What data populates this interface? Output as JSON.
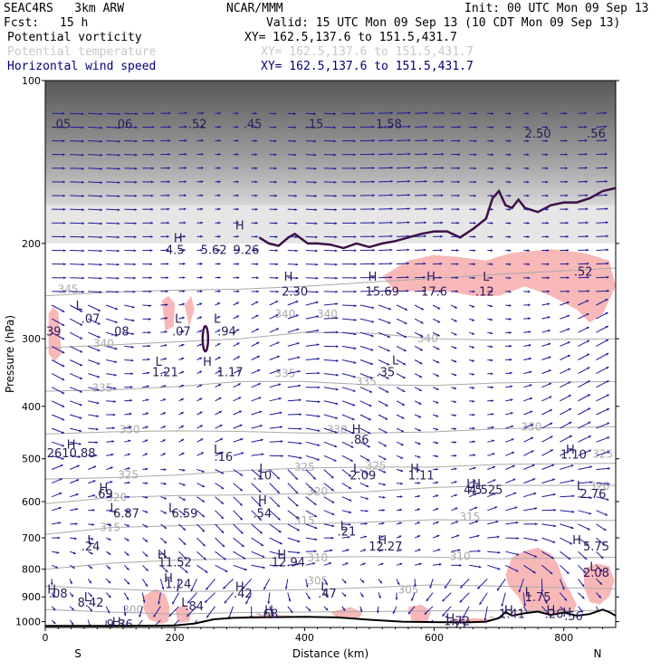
{
  "header": {
    "model": "SEAC4RS   3km ARW",
    "center": "NCAR/MMM",
    "init": "Init: 00 UTC Mon 09 Sep 13",
    "fcst_label": "Fcst:",
    "fcst_value": "15 h",
    "valid": "Valid: 15 UTC Mon 09 Sep 13 (10 CDT Mon 09 Sep 13)"
  },
  "legend": [
    {
      "name": "Potential vorticity",
      "xy": "XY= 162.5,137.6 to 151.5,431.7",
      "color": "#000000"
    },
    {
      "name": "Potential temperature",
      "xy": "XY= 162.5,137.6 to 151.5,431.7",
      "color": "#c8c8c8"
    },
    {
      "name": "Horizontal wind speed",
      "xy": "XY= 162.5,137.6 to 151.5,431.7",
      "color": "#00007a"
    }
  ],
  "colors": {
    "wind_vectors": "#1c1c9c",
    "potential_temperature": "#aaaaaa",
    "pv_contour": "#3d1048",
    "pink_fill": "#f8b8b8",
    "terrain": "#000000",
    "hl_labels": "#2a1858"
  },
  "chart_data": {
    "type": "cross-section",
    "xlabel": "Distance (km)",
    "ylabel": "Pressure (hPa)",
    "xlim": [
      0,
      880
    ],
    "ylim": [
      100,
      1025
    ],
    "y_scale": "log",
    "x_ticks": [
      0,
      200,
      400,
      600,
      800
    ],
    "y_ticks": [
      100,
      200,
      300,
      400,
      500,
      600,
      700,
      800,
      900,
      1000
    ],
    "x_end_labels": {
      "left": "S",
      "right": "N"
    },
    "theta_contours": [
      {
        "label": "345",
        "points": [
          [
            0,
            250
          ],
          [
            100,
            246
          ],
          [
            200,
            244
          ],
          [
            300,
            243
          ],
          [
            400,
            240
          ],
          [
            500,
            236
          ],
          [
            600,
            232
          ],
          [
            700,
            228
          ],
          [
            880,
            222
          ]
        ]
      },
      {
        "label": "340",
        "points": [
          [
            0,
            312
          ],
          [
            100,
            308
          ],
          [
            200,
            304
          ],
          [
            300,
            300
          ],
          [
            400,
            292
          ],
          [
            500,
            293
          ],
          [
            600,
            300
          ],
          [
            700,
            302
          ],
          [
            880,
            300
          ]
        ]
      },
      {
        "label": "335",
        "points": [
          [
            0,
            375
          ],
          [
            100,
            373
          ],
          [
            200,
            368
          ],
          [
            300,
            360
          ],
          [
            400,
            360
          ],
          [
            500,
            365
          ],
          [
            600,
            366
          ],
          [
            700,
            362
          ],
          [
            880,
            360
          ]
        ]
      },
      {
        "label": "330",
        "points": [
          [
            0,
            450
          ],
          [
            100,
            446
          ],
          [
            200,
            444
          ],
          [
            300,
            445
          ],
          [
            400,
            448
          ],
          [
            500,
            448
          ],
          [
            600,
            446
          ],
          [
            700,
            440
          ],
          [
            880,
            436
          ]
        ]
      },
      {
        "label": "325",
        "points": [
          [
            0,
            545
          ],
          [
            100,
            542
          ],
          [
            200,
            536
          ],
          [
            300,
            526
          ],
          [
            400,
            520
          ],
          [
            500,
            518
          ],
          [
            600,
            518
          ],
          [
            700,
            512
          ],
          [
            880,
            510
          ]
        ]
      },
      {
        "label": "320",
        "points": [
          [
            0,
            605
          ],
          [
            100,
            590
          ],
          [
            200,
            585
          ],
          [
            300,
            583
          ],
          [
            400,
            580
          ],
          [
            500,
            575
          ],
          [
            600,
            565
          ],
          [
            700,
            560
          ],
          [
            880,
            560
          ]
        ]
      },
      {
        "label": "315",
        "points": [
          [
            0,
            690
          ],
          [
            100,
            670
          ],
          [
            200,
            665
          ],
          [
            300,
            660
          ],
          [
            400,
            660
          ],
          [
            500,
            655
          ],
          [
            600,
            648
          ],
          [
            700,
            650
          ],
          [
            880,
            650
          ]
        ]
      },
      {
        "label": "310",
        "points": [
          [
            0,
            800
          ],
          [
            100,
            780
          ],
          [
            200,
            770
          ],
          [
            300,
            765
          ],
          [
            400,
            760
          ],
          [
            500,
            758
          ],
          [
            600,
            760
          ],
          [
            700,
            765
          ],
          [
            880,
            760
          ]
        ]
      },
      {
        "label": "305",
        "points": [
          [
            0,
            860
          ],
          [
            100,
            870
          ],
          [
            200,
            880
          ],
          [
            300,
            878
          ],
          [
            400,
            873
          ],
          [
            500,
            865
          ],
          [
            600,
            855
          ],
          [
            700,
            860
          ],
          [
            880,
            870
          ]
        ]
      },
      {
        "label": "300",
        "points": [
          [
            0,
            950
          ],
          [
            100,
            960
          ],
          [
            200,
            968
          ],
          [
            300,
            962
          ],
          [
            400,
            960
          ],
          [
            500,
            958
          ],
          [
            600,
            955
          ],
          [
            700,
            955
          ],
          [
            880,
            955
          ]
        ]
      }
    ],
    "theta_label_positions": [
      {
        "label": "345",
        "x": 35,
        "p": 243
      },
      {
        "label": "340",
        "x": 370,
        "p": 270
      },
      {
        "label": "340",
        "x": 435,
        "p": 270
      },
      {
        "label": "340",
        "x": 590,
        "p": 300
      },
      {
        "label": "340",
        "x": 90,
        "p": 306
      },
      {
        "label": "335",
        "x": 88,
        "p": 370
      },
      {
        "label": "335",
        "x": 370,
        "p": 348
      },
      {
        "label": "335",
        "x": 495,
        "p": 360
      },
      {
        "label": "330",
        "x": 130,
        "p": 442
      },
      {
        "label": "330",
        "x": 450,
        "p": 442
      },
      {
        "label": "330",
        "x": 750,
        "p": 437
      },
      {
        "label": "325",
        "x": 128,
        "p": 535
      },
      {
        "label": "325",
        "x": 400,
        "p": 518
      },
      {
        "label": "325",
        "x": 510,
        "p": 515
      },
      {
        "label": "325",
        "x": 860,
        "p": 490
      },
      {
        "label": "320",
        "x": 110,
        "p": 590
      },
      {
        "label": "320",
        "x": 420,
        "p": 575
      },
      {
        "label": "320",
        "x": 855,
        "p": 562
      },
      {
        "label": "315",
        "x": 100,
        "p": 670
      },
      {
        "label": "315",
        "x": 400,
        "p": 650
      },
      {
        "label": "315",
        "x": 655,
        "p": 640
      },
      {
        "label": "310",
        "x": 420,
        "p": 762
      },
      {
        "label": "310",
        "x": 640,
        "p": 758
      },
      {
        "label": "305",
        "x": 420,
        "p": 840
      },
      {
        "label": "305",
        "x": 560,
        "p": 873
      },
      {
        "label": "300",
        "x": 135,
        "p": 950
      },
      {
        "label": "300",
        "x": 340,
        "p": 985
      },
      {
        "label": "300",
        "x": 700,
        "p": 998
      },
      {
        "label": "300",
        "x": 860,
        "p": 998
      }
    ],
    "terrain": [
      [
        0,
        1018
      ],
      [
        100,
        1018
      ],
      [
        180,
        1017
      ],
      [
        200,
        1016
      ],
      [
        230,
        1008
      ],
      [
        260,
        990
      ],
      [
        290,
        984
      ],
      [
        330,
        982
      ],
      [
        400,
        980
      ],
      [
        450,
        982
      ],
      [
        500,
        992
      ],
      [
        550,
        1000
      ],
      [
        600,
        1002
      ],
      [
        650,
        1003
      ],
      [
        680,
        1000
      ],
      [
        700,
        985
      ],
      [
        710,
        960
      ],
      [
        720,
        975
      ],
      [
        740,
        965
      ],
      [
        760,
        958
      ],
      [
        780,
        972
      ],
      [
        800,
        962
      ],
      [
        820,
        975
      ],
      [
        840,
        968
      ],
      [
        860,
        950
      ],
      [
        870,
        960
      ],
      [
        880,
        975
      ]
    ],
    "pv_contour_2pvu": [
      [
        330,
        195
      ],
      [
        345,
        200
      ],
      [
        360,
        202
      ],
      [
        375,
        195
      ],
      [
        385,
        192
      ],
      [
        395,
        196
      ],
      [
        405,
        200
      ],
      [
        420,
        200
      ],
      [
        440,
        201
      ],
      [
        460,
        204
      ],
      [
        480,
        200
      ],
      [
        500,
        203
      ],
      [
        520,
        200
      ],
      [
        540,
        198
      ],
      [
        560,
        195
      ],
      [
        580,
        192
      ],
      [
        600,
        190
      ],
      [
        620,
        190
      ],
      [
        640,
        195
      ],
      [
        660,
        188
      ],
      [
        680,
        180
      ],
      [
        690,
        165
      ],
      [
        700,
        160
      ],
      [
        710,
        170
      ],
      [
        720,
        172
      ],
      [
        730,
        166
      ],
      [
        740,
        172
      ],
      [
        760,
        175
      ],
      [
        780,
        170
      ],
      [
        800,
        168
      ],
      [
        820,
        168
      ],
      [
        840,
        165
      ],
      [
        860,
        160
      ],
      [
        880,
        158
      ]
    ],
    "hl_markers": [
      {
        "type": "H",
        "x": 205,
        "p": 195
      },
      {
        "type": "H",
        "x": 300,
        "p": 185
      },
      {
        "type": "H",
        "x": 375,
        "p": 230
      },
      {
        "type": "H",
        "x": 505,
        "p": 230
      },
      {
        "type": "H",
        "x": 595,
        "p": 230
      },
      {
        "type": "L",
        "x": 680,
        "p": 230
      },
      {
        "type": "L",
        "x": 52,
        "p": 260
      },
      {
        "type": "L",
        "x": 205,
        "p": 275
      },
      {
        "type": "L",
        "x": 265,
        "p": 275
      },
      {
        "type": "L",
        "x": 175,
        "p": 330
      },
      {
        "type": "H",
        "x": 250,
        "p": 330
      },
      {
        "type": "L",
        "x": 540,
        "p": 328
      },
      {
        "type": "H",
        "x": 480,
        "p": 440
      },
      {
        "type": "H",
        "x": 40,
        "p": 470
      },
      {
        "type": "L",
        "x": 265,
        "p": 480
      },
      {
        "type": "H",
        "x": 810,
        "p": 480
      },
      {
        "type": "L",
        "x": 335,
        "p": 520
      },
      {
        "type": "L",
        "x": 480,
        "p": 520
      },
      {
        "type": "H",
        "x": 570,
        "p": 520
      },
      {
        "type": "H",
        "x": 90,
        "p": 565
      },
      {
        "type": "L",
        "x": 655,
        "p": 555
      },
      {
        "type": "H",
        "x": 665,
        "p": 555
      },
      {
        "type": "L",
        "x": 825,
        "p": 560
      },
      {
        "type": "L",
        "x": 105,
        "p": 615
      },
      {
        "type": "L",
        "x": 195,
        "p": 615
      },
      {
        "type": "H",
        "x": 335,
        "p": 595
      },
      {
        "type": "L",
        "x": 460,
        "p": 665
      },
      {
        "type": "H",
        "x": 520,
        "p": 705
      },
      {
        "type": "L",
        "x": 70,
        "p": 705
      },
      {
        "type": "H",
        "x": 820,
        "p": 705
      },
      {
        "type": "H",
        "x": 180,
        "p": 750
      },
      {
        "type": "H",
        "x": 365,
        "p": 750
      },
      {
        "type": "L",
        "x": 845,
        "p": 790
      },
      {
        "type": "H",
        "x": 190,
        "p": 830
      },
      {
        "type": "H",
        "x": 300,
        "p": 860
      },
      {
        "type": "L",
        "x": 430,
        "p": 860
      },
      {
        "type": "H",
        "x": 10,
        "p": 870
      },
      {
        "type": "L",
        "x": 65,
        "p": 900
      },
      {
        "type": "L",
        "x": 745,
        "p": 880
      },
      {
        "type": "L",
        "x": 215,
        "p": 920
      },
      {
        "type": "H",
        "x": 345,
        "p": 950
      },
      {
        "type": "H",
        "x": 715,
        "p": 950
      },
      {
        "type": "H",
        "x": 780,
        "p": 950
      },
      {
        "type": "H",
        "x": 805,
        "p": 960
      },
      {
        "type": "H",
        "x": 625,
        "p": 985
      },
      {
        "type": "H",
        "x": 110,
        "p": 1000
      }
    ],
    "value_labels": [
      {
        "text": ".05",
        "x": 25,
        "p": 120
      },
      {
        "text": ".06",
        "x": 120,
        "p": 120
      },
      {
        "text": ".52",
        "x": 235,
        "p": 120
      },
      {
        "text": ".45",
        "x": 320,
        "p": 120
      },
      {
        "text": ".15",
        "x": 415,
        "p": 120
      },
      {
        "text": "1.58",
        "x": 530,
        "p": 120
      },
      {
        "text": "2.50",
        "x": 760,
        "p": 125
      },
      {
        "text": ".56",
        "x": 850,
        "p": 125
      },
      {
        "text": "4.5",
        "x": 200,
        "p": 205
      },
      {
        "text": "5.62",
        "x": 260,
        "p": 205
      },
      {
        "text": "9.26",
        "x": 310,
        "p": 205
      },
      {
        "text": "2.30",
        "x": 385,
        "p": 245
      },
      {
        "text": "15.69",
        "x": 520,
        "p": 245
      },
      {
        "text": "17.6",
        "x": 600,
        "p": 245
      },
      {
        "text": ".12",
        "x": 678,
        "p": 245
      },
      {
        "text": ".52",
        "x": 830,
        "p": 225
      },
      {
        "text": ".07",
        "x": 70,
        "p": 275
      },
      {
        "text": ".39",
        "x": 10,
        "p": 290
      },
      {
        "text": ".08",
        "x": 115,
        "p": 290
      },
      {
        "text": ".07",
        "x": 210,
        "p": 290
      },
      {
        "text": ".94",
        "x": 280,
        "p": 290
      },
      {
        "text": "1.21",
        "x": 185,
        "p": 345
      },
      {
        "text": "1.17",
        "x": 285,
        "p": 345
      },
      {
        "text": ".35",
        "x": 525,
        "p": 345
      },
      {
        "text": ".86",
        "x": 485,
        "p": 460
      },
      {
        "text": ".16",
        "x": 275,
        "p": 495
      },
      {
        "text": "1.10",
        "x": 815,
        "p": 490
      },
      {
        "text": "2610.88",
        "x": 40,
        "p": 487
      },
      {
        "text": ".10",
        "x": 335,
        "p": 535
      },
      {
        "text": "2.09",
        "x": 490,
        "p": 535
      },
      {
        "text": "1.11",
        "x": 580,
        "p": 535
      },
      {
        "text": ".69",
        "x": 90,
        "p": 580
      },
      {
        "text": "4.5",
        "x": 660,
        "p": 570
      },
      {
        "text": "4.525",
        "x": 680,
        "p": 570
      },
      {
        "text": "2.76",
        "x": 845,
        "p": 580
      },
      {
        "text": "6.87",
        "x": 125,
        "p": 630
      },
      {
        "text": "6.59",
        "x": 215,
        "p": 630
      },
      {
        "text": ".54",
        "x": 335,
        "p": 630
      },
      {
        "text": ".21",
        "x": 465,
        "p": 680
      },
      {
        "text": ".24",
        "x": 70,
        "p": 725
      },
      {
        "text": "12.27",
        "x": 525,
        "p": 725
      },
      {
        "text": "5.75",
        "x": 850,
        "p": 725
      },
      {
        "text": "11.52",
        "x": 200,
        "p": 775
      },
      {
        "text": "12.94",
        "x": 375,
        "p": 775
      },
      {
        "text": "2.08",
        "x": 850,
        "p": 810
      },
      {
        "text": "1.24",
        "x": 205,
        "p": 850
      },
      {
        "text": ".42",
        "x": 305,
        "p": 885
      },
      {
        "text": ".47",
        "x": 435,
        "p": 885
      },
      {
        "text": ".08",
        "x": 20,
        "p": 885
      },
      {
        "text": "1.75",
        "x": 760,
        "p": 900
      },
      {
        "text": "8.42",
        "x": 70,
        "p": 920
      },
      {
        "text": ".84",
        "x": 230,
        "p": 935
      },
      {
        "text": ".68",
        "x": 345,
        "p": 965
      },
      {
        "text": "1.41",
        "x": 720,
        "p": 965
      },
      {
        "text": ".26",
        "x": 785,
        "p": 965
      },
      {
        "text": ".56",
        "x": 815,
        "p": 975
      },
      {
        "text": "1.72",
        "x": 635,
        "p": 995
      },
      {
        "text": ".55",
        "x": 635,
        "p": 1010
      },
      {
        "text": "9.36",
        "x": 115,
        "p": 1010
      }
    ]
  }
}
